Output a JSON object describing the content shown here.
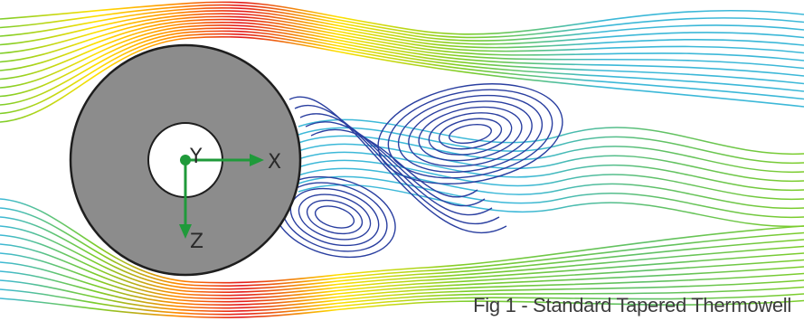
{
  "figure": {
    "axes": {
      "x_label": "X",
      "y_label": "Y",
      "z_label": "Z"
    },
    "caption": "Fig 1 - Standard Tapered Thermowell",
    "colors": {
      "cylinder": "#8c8c8c",
      "axis": "#1f9a3a",
      "streamline_scale": [
        "#e31a1c",
        "#ff8c00",
        "#ffe000",
        "#7ccd2a",
        "#3cb8d8",
        "#2a3fa0"
      ]
    }
  }
}
